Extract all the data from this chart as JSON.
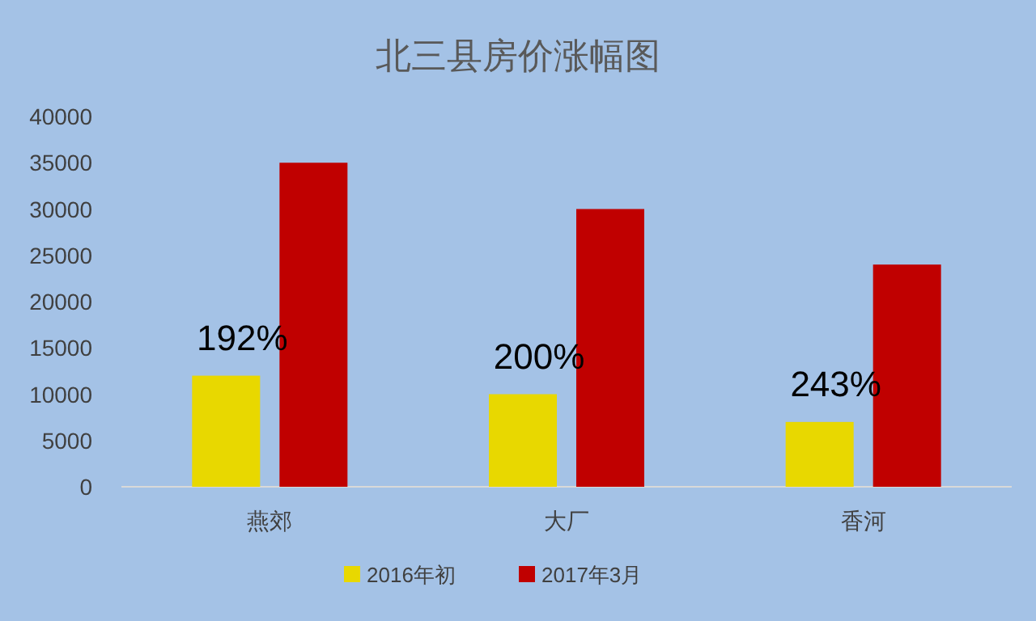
{
  "chart_data": {
    "type": "bar",
    "title": "北三县房价涨幅图",
    "categories": [
      "燕郊",
      "大厂",
      "香河"
    ],
    "series": [
      {
        "name": "2016年初",
        "color": "#e8d800",
        "values": [
          12000,
          10000,
          7000
        ]
      },
      {
        "name": "2017年3月",
        "color": "#c00000",
        "values": [
          35000,
          30000,
          24000
        ]
      }
    ],
    "ylim": [
      0,
      40000
    ],
    "yticks": [
      0,
      5000,
      10000,
      15000,
      20000,
      25000,
      30000,
      35000,
      40000
    ],
    "annotations": [
      "192%",
      "200%",
      "243%"
    ],
    "legend": "bottom",
    "grid": false
  }
}
